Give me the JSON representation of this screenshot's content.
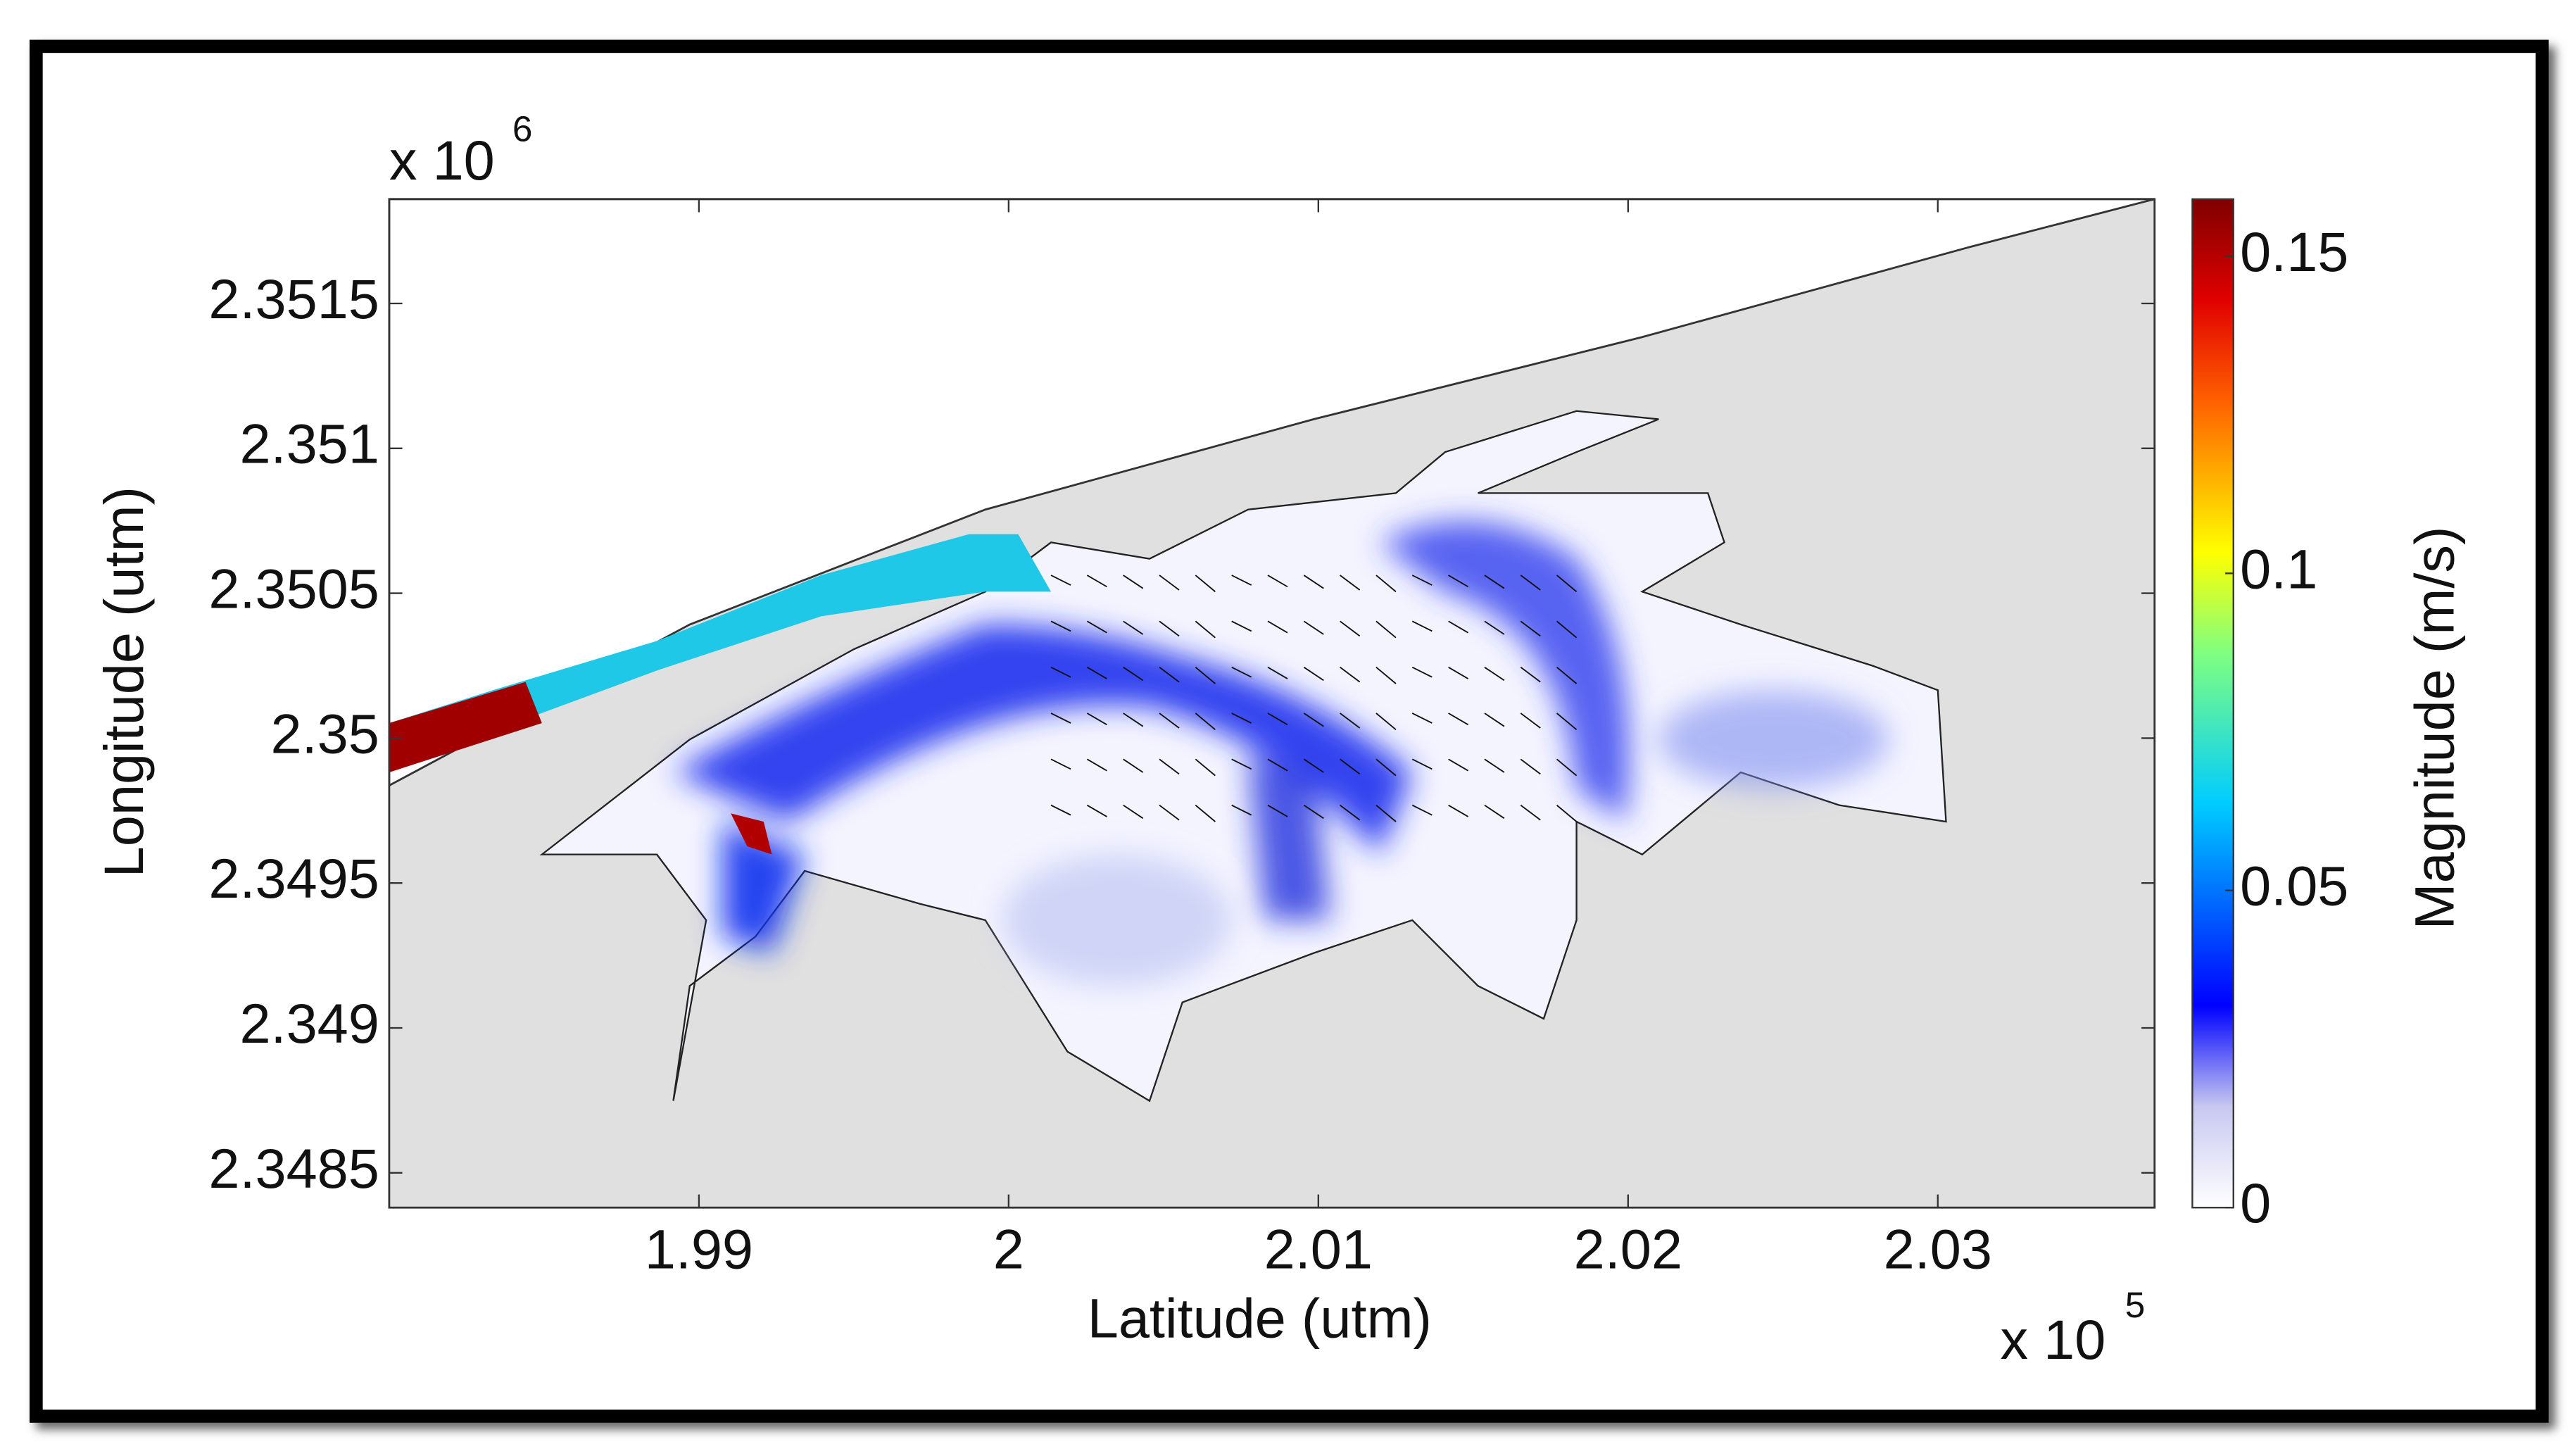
{
  "chart_data": {
    "type": "quiver",
    "xlabel": "Latitude (utm)",
    "ylabel": "Longitude (utm)",
    "x_exponent": {
      "base": "x 10",
      "power": "5"
    },
    "y_exponent": {
      "base": "x 10",
      "power": "6"
    },
    "xlim": [
      1.98,
      2.037
    ],
    "xticks": [
      1.99,
      2,
      2.01,
      2.02,
      2.03
    ],
    "ylim": [
      2.34838,
      2.35186
    ],
    "yticks": [
      2.3485,
      2.349,
      2.3495,
      2.35,
      2.3505,
      2.351,
      2.3515
    ],
    "colorbar": {
      "label": "Magnitude (m/s)",
      "lim": [
        0,
        0.159
      ],
      "ticks": [
        0,
        0.05,
        0.1,
        0.15
      ],
      "colormap": "jet"
    }
  }
}
